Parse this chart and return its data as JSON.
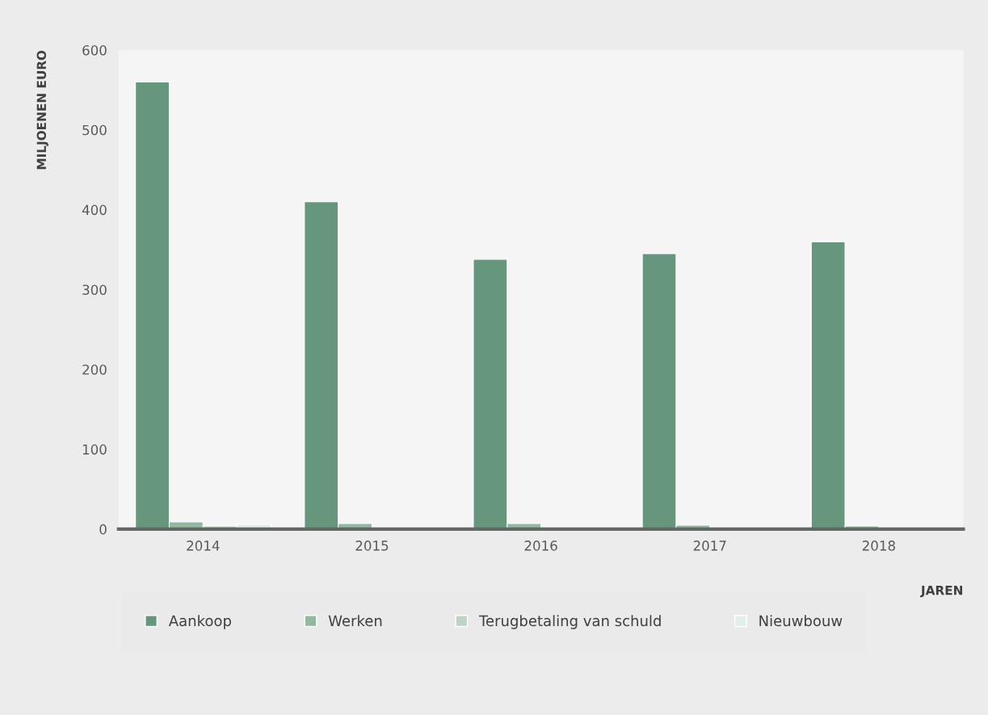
{
  "chart_data": {
    "type": "bar",
    "xlabel": "JAREN",
    "ylabel": "MILJOENEN EURO",
    "categories": [
      "2014",
      "2015",
      "2016",
      "2017",
      "2018"
    ],
    "series": [
      {
        "name": "Aankoop",
        "color": "#66977d",
        "values": [
          560,
          410,
          338,
          345,
          360
        ]
      },
      {
        "name": "Werken",
        "color": "#93b8a2",
        "values": [
          9,
          7,
          7,
          5,
          4
        ]
      },
      {
        "name": "Terugbetaling van schuld",
        "color": "#bcd3c5",
        "values": [
          4,
          null,
          null,
          null,
          null
        ]
      },
      {
        "name": "Nieuwbouw",
        "color": "#e2eee8",
        "values": [
          6,
          null,
          null,
          null,
          null
        ]
      }
    ],
    "ylim": [
      0,
      600
    ],
    "yticks": [
      0,
      100,
      200,
      300,
      400,
      500,
      600
    ],
    "grid": false,
    "legend": "bottom"
  }
}
